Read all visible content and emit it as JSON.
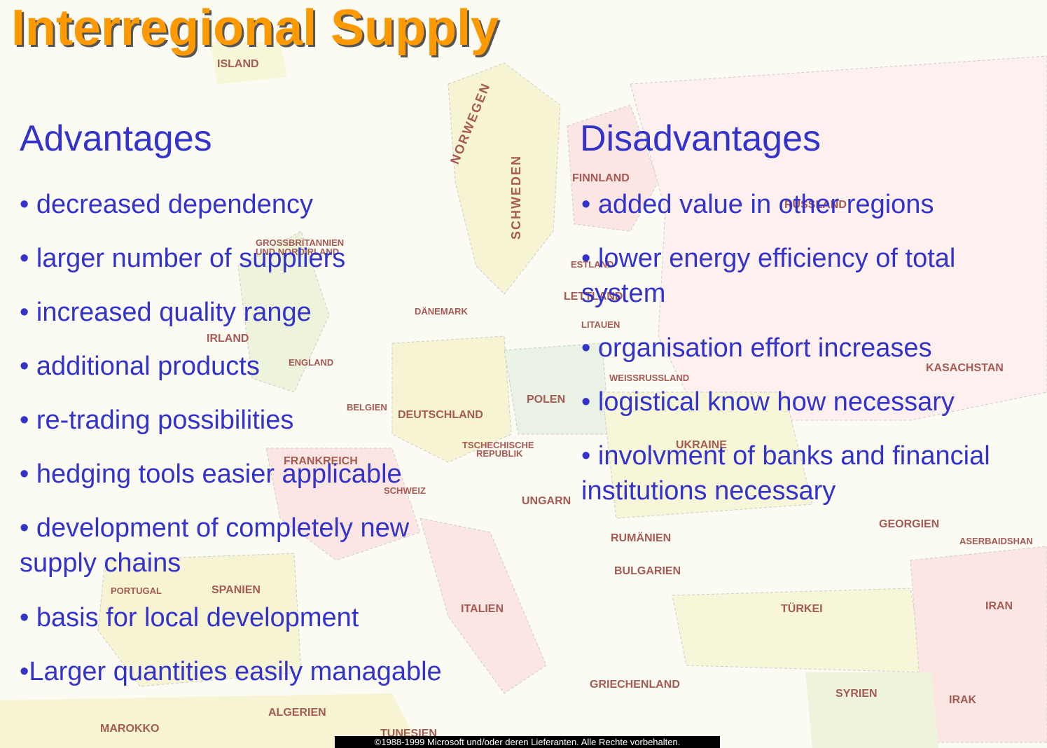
{
  "title": "Interregional Supply",
  "advantages": {
    "heading": "Advantages",
    "items": [
      "decreased dependency",
      "larger number of suppliers",
      "increased quality range",
      "additional products",
      "re-trading possibilities",
      "hedging tools easier applicable",
      "development of completely new supply chains",
      "basis for local development",
      "Larger quantities easily managable"
    ]
  },
  "disadvantages": {
    "heading": "Disadvantages",
    "items": [
      "added value in other regions",
      "lower energy efficiency of total system",
      "organisation effort increases",
      "logistical know how necessary",
      "involvment of banks and financial institutions necessary"
    ]
  },
  "map_labels": [
    "ISLAND",
    "NORWEGEN",
    "SCHWEDEN",
    "FINNLAND",
    "RUSSLAND",
    "GROSSBRITANNIEN",
    "UND NORDIRLAND",
    "ESTLAND",
    "LETTLAND",
    "DÄNEMARK",
    "LITAUEN",
    "IRLAND",
    "ENGLAND",
    "KASACHSTAN",
    "WEISSRUSSLAND",
    "POLEN",
    "BELGIEN",
    "DEUTSCHLAND",
    "TSCHECHISCHE",
    "REPUBLIK",
    "UKRAINE",
    "FRANKREICH",
    "SCHWEIZ",
    "UNGARN",
    "GEORGIEN",
    "RUMÄNIEN",
    "ASERBAIDSHAN",
    "BULGARIEN",
    "PORTUGAL",
    "SPANIEN",
    "ITALIEN",
    "TÜRKEI",
    "IRAN",
    "GRIECHENLAND",
    "SYRIEN",
    "IRAK",
    "ALGERIEN",
    "MAROKKO",
    "TUNESIEN"
  ],
  "copyright": "©1988-1999 Microsoft und/oder deren Lieferanten. Alle Rechte vorbehalten."
}
